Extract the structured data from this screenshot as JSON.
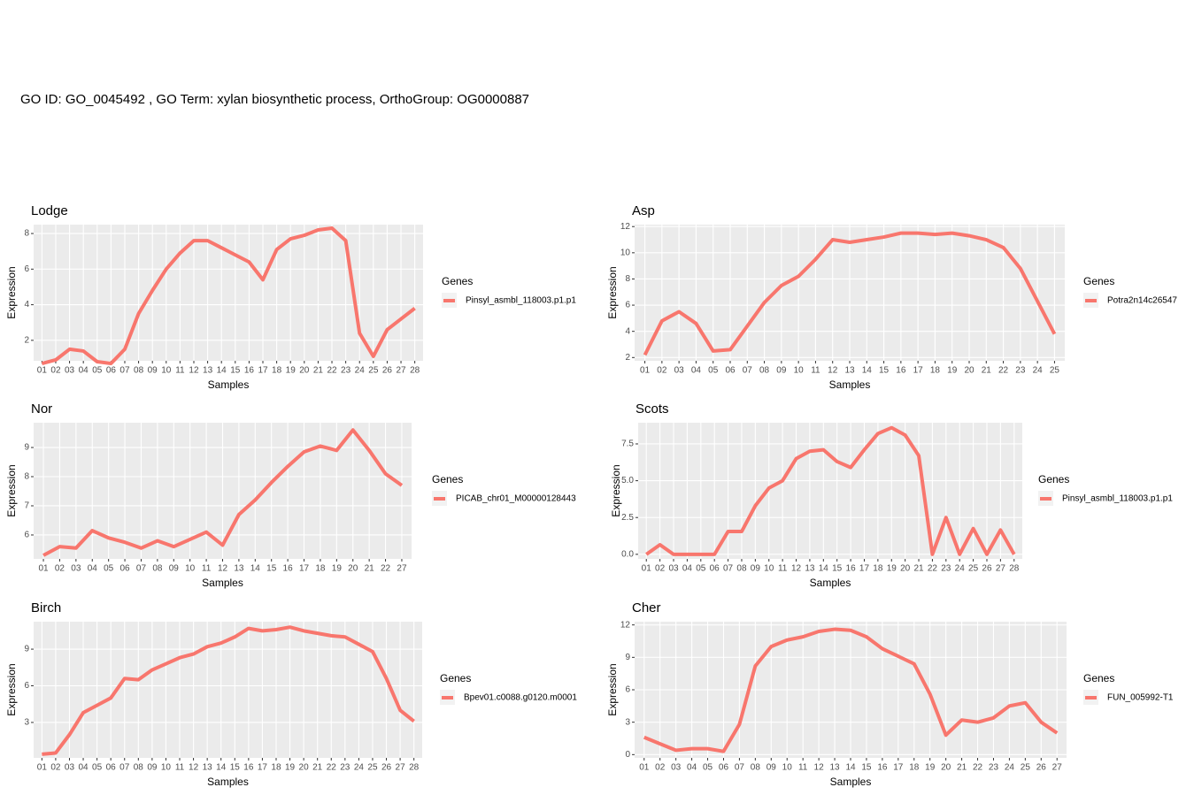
{
  "title": "GO ID: GO_0045492 , GO Term: xylan biosynthetic process, OrthoGroup: OG0000887",
  "chart_data": [
    {
      "type": "line",
      "title": "Lodge",
      "x_label": "Samples",
      "y_label": "Expression",
      "legend_title": "Genes",
      "grid": true,
      "categories": [
        "01",
        "02",
        "03",
        "04",
        "05",
        "06",
        "07",
        "08",
        "09",
        "10",
        "11",
        "12",
        "13",
        "14",
        "15",
        "16",
        "17",
        "18",
        "19",
        "20",
        "21",
        "22",
        "23",
        "24",
        "25",
        "26",
        "27",
        "28"
      ],
      "series": [
        {
          "name": "Pinsyl_asmbl_118003.p1.p1",
          "color": "#F8766D",
          "values": [
            0.7,
            0.9,
            1.5,
            1.4,
            0.8,
            0.7,
            1.5,
            3.5,
            4.8,
            6.0,
            6.9,
            7.6,
            7.6,
            7.2,
            6.8,
            6.4,
            5.4,
            7.1,
            7.7,
            7.9,
            8.2,
            8.3,
            7.6,
            2.4,
            1.1,
            2.6,
            3.2,
            3.8
          ]
        }
      ],
      "ylim": [
        0.85,
        8.5
      ],
      "yticks": [
        2,
        4,
        6,
        8
      ]
    },
    {
      "type": "line",
      "title": "Asp",
      "x_label": "Samples",
      "y_label": "Expression",
      "legend_title": "Genes",
      "grid": true,
      "categories": [
        "01",
        "02",
        "03",
        "04",
        "05",
        "06",
        "07",
        "08",
        "09",
        "10",
        "11",
        "12",
        "13",
        "14",
        "15",
        "16",
        "17",
        "18",
        "19",
        "20",
        "21",
        "22",
        "23",
        "24",
        "25"
      ],
      "series": [
        {
          "name": "Potra2n14c26547",
          "color": "#F8766D",
          "values": [
            2.2,
            4.8,
            5.5,
            4.6,
            2.5,
            2.6,
            4.4,
            6.2,
            7.5,
            8.2,
            9.5,
            11.0,
            10.8,
            11.0,
            11.2,
            11.5,
            11.5,
            11.4,
            11.5,
            11.3,
            11.0,
            10.4,
            8.8,
            6.3,
            3.8
          ]
        }
      ],
      "ylim": [
        1.75,
        12.15
      ],
      "yticks": [
        2,
        4,
        6,
        8,
        10,
        12
      ]
    },
    {
      "type": "line",
      "title": "Nor",
      "x_label": "Samples",
      "y_label": "Expression",
      "legend_title": "Genes",
      "grid": true,
      "categories": [
        "01",
        "02",
        "03",
        "04",
        "05",
        "06",
        "07",
        "08",
        "09",
        "10",
        "11",
        "12",
        "13",
        "14",
        "15",
        "16",
        "17",
        "18",
        "19",
        "20",
        "21",
        "22",
        "27"
      ],
      "series": [
        {
          "name": "PICAB_chr01_M00000128443",
          "color": "#F8766D",
          "values": [
            5.3,
            5.6,
            5.55,
            6.15,
            5.9,
            5.75,
            5.55,
            5.8,
            5.6,
            5.85,
            6.1,
            5.65,
            6.7,
            7.2,
            7.8,
            8.35,
            8.85,
            9.05,
            8.9,
            9.6,
            8.9,
            8.1,
            7.7
          ]
        }
      ],
      "ylim": [
        5.18,
        9.85
      ],
      "yticks": [
        6,
        7,
        8,
        9
      ]
    },
    {
      "type": "line",
      "title": "Scots",
      "x_label": "Samples",
      "y_label": "Expression",
      "legend_title": "Genes",
      "grid": true,
      "categories": [
        "01",
        "02",
        "03",
        "04",
        "05",
        "06",
        "07",
        "08",
        "09",
        "10",
        "11",
        "12",
        "13",
        "14",
        "15",
        "16",
        "17",
        "18",
        "19",
        "20",
        "21",
        "22",
        "23",
        "24",
        "25",
        "26",
        "27",
        "28"
      ],
      "series": [
        {
          "name": "Pinsyl_asmbl_118003.p1.p1",
          "color": "#F8766D",
          "values": [
            0.0,
            0.65,
            0.0,
            0.0,
            0.0,
            0.0,
            1.55,
            1.55,
            3.3,
            4.5,
            5.0,
            6.5,
            7.0,
            7.1,
            6.3,
            5.9,
            7.1,
            8.2,
            8.6,
            8.1,
            6.7,
            0.0,
            2.5,
            0.0,
            1.75,
            0.0,
            1.65,
            0.0
          ]
        }
      ],
      "ylim": [
        -0.31,
        8.94
      ],
      "yticks": [
        {
          "value": 0,
          "label": "0.0"
        },
        2.5,
        {
          "value": 5,
          "label": "5.0"
        },
        7.5
      ]
    },
    {
      "type": "line",
      "title": "Birch",
      "x_label": "Samples",
      "y_label": "Expression",
      "legend_title": "Genes",
      "grid": true,
      "categories": [
        "01",
        "02",
        "03",
        "04",
        "05",
        "06",
        "07",
        "08",
        "09",
        "10",
        "11",
        "12",
        "13",
        "14",
        "15",
        "16",
        "17",
        "18",
        "19",
        "20",
        "21",
        "22",
        "23",
        "24",
        "25",
        "26",
        "27",
        "28"
      ],
      "series": [
        {
          "name": "Bpev01.c0088.g0120.m0001",
          "color": "#F8766D",
          "values": [
            0.4,
            0.5,
            2.0,
            3.8,
            4.4,
            5.0,
            6.6,
            6.5,
            7.3,
            7.8,
            8.3,
            8.6,
            9.2,
            9.5,
            10.0,
            10.7,
            10.5,
            10.6,
            10.8,
            10.5,
            10.3,
            10.1,
            10.0,
            9.4,
            8.8,
            6.6,
            4.0,
            3.1
          ]
        }
      ],
      "ylim": [
        0.1,
        11.25
      ],
      "yticks": [
        3,
        6,
        9
      ]
    },
    {
      "type": "line",
      "title": "Cher",
      "x_label": "Samples",
      "y_label": "Expression",
      "legend_title": "Genes",
      "grid": true,
      "categories": [
        "01",
        "02",
        "03",
        "04",
        "05",
        "06",
        "07",
        "08",
        "09",
        "10",
        "11",
        "12",
        "13",
        "14",
        "15",
        "16",
        "17",
        "18",
        "19",
        "20",
        "21",
        "22",
        "23",
        "24",
        "25",
        "26",
        "27"
      ],
      "series": [
        {
          "name": "FUN_005992-T1",
          "color": "#F8766D",
          "values": [
            1.6,
            1.0,
            0.4,
            0.55,
            0.55,
            0.3,
            2.8,
            8.2,
            10.0,
            10.6,
            10.9,
            11.4,
            11.6,
            11.5,
            10.9,
            9.8,
            9.1,
            8.4,
            5.6,
            1.8,
            3.2,
            3.0,
            3.4,
            4.5,
            4.8,
            3.0,
            2.0
          ]
        }
      ],
      "ylim": [
        -0.3,
        12.3
      ],
      "yticks": [
        0,
        3,
        6,
        9,
        12
      ]
    }
  ]
}
